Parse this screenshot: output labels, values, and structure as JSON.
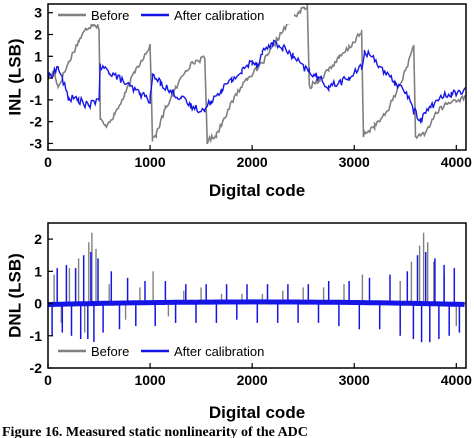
{
  "caption": "Figure 16. Measured static nonlinearity of the ADC",
  "chart_data": [
    {
      "type": "line",
      "title": "",
      "xlabel": "Digital code",
      "ylabel": "INL (LSB)",
      "xlim": [
        0,
        4095
      ],
      "ylim": [
        -3.3,
        3.4
      ],
      "xticks": [
        0,
        1000,
        2000,
        3000,
        4000
      ],
      "yticks": [
        -3,
        -2,
        -1,
        0,
        1,
        2,
        3
      ],
      "grid": false,
      "legend_position": "top-left",
      "series": [
        {
          "name": "Before",
          "color": "#808080",
          "x": [
            0,
            60,
            100,
            200,
            300,
            380,
            450,
            500,
            512,
            560,
            650,
            750,
            850,
            950,
            1000,
            1024,
            1060,
            1150,
            1250,
            1350,
            1450,
            1536,
            1560,
            1650,
            1750,
            1850,
            1950,
            2048,
            2150,
            2250,
            2350,
            2450,
            2540,
            2560,
            2650,
            2750,
            2850,
            2950,
            3072,
            3090,
            3200,
            3300,
            3400,
            3500,
            3584,
            3600,
            3700,
            3800,
            3900,
            4000,
            4095
          ],
          "values": [
            0.0,
            0.3,
            -0.4,
            0.7,
            1.7,
            2.3,
            2.5,
            2.3,
            -1.9,
            -2.2,
            -1.7,
            -0.8,
            0.3,
            1.1,
            1.5,
            -2.8,
            -2.6,
            -1.4,
            -0.5,
            0.4,
            0.8,
            0.9,
            -2.9,
            -2.6,
            -1.6,
            -0.7,
            0.0,
            0.4,
            1.0,
            1.8,
            2.5,
            3.0,
            3.3,
            -0.4,
            -0.1,
            0.4,
            0.9,
            1.4,
            2.1,
            -2.6,
            -2.2,
            -1.7,
            -0.8,
            0.3,
            1.5,
            -2.8,
            -2.5,
            -1.6,
            -1.2,
            -1.0,
            -0.9
          ]
        },
        {
          "name": "After calibration",
          "color": "#1515e6",
          "x": [
            0,
            100,
            200,
            300,
            400,
            500,
            512,
            600,
            700,
            800,
            900,
            1000,
            1024,
            1100,
            1200,
            1300,
            1400,
            1536,
            1600,
            1700,
            1800,
            1900,
            2000,
            2048,
            2100,
            2200,
            2300,
            2400,
            2500,
            2560,
            2650,
            2750,
            2850,
            2950,
            3072,
            3100,
            3200,
            3300,
            3400,
            3500,
            3584,
            3650,
            3750,
            3850,
            3950,
            4095
          ],
          "values": [
            0.0,
            0.5,
            -0.9,
            -1.0,
            -1.3,
            -0.9,
            0.5,
            0.3,
            0.0,
            -0.4,
            -0.7,
            -1.0,
            0.1,
            -0.2,
            -0.6,
            -0.9,
            -1.3,
            -1.5,
            -1.0,
            -0.5,
            -0.1,
            0.3,
            0.8,
            0.6,
            1.2,
            1.6,
            1.4,
            1.0,
            0.5,
            0.3,
            0.0,
            -0.4,
            -0.2,
            0.0,
            0.5,
            1.2,
            0.9,
            0.2,
            -0.2,
            -0.6,
            -1.5,
            -1.9,
            -1.3,
            -0.9,
            -0.7,
            -0.6
          ]
        }
      ]
    },
    {
      "type": "line",
      "title": "",
      "xlabel": "Digital code",
      "ylabel": "DNL (LSB)",
      "xlim": [
        0,
        4095
      ],
      "ylim": [
        -2,
        2.5
      ],
      "xticks": [
        0,
        1000,
        2000,
        3000,
        4000
      ],
      "yticks": [
        -2,
        -1,
        0,
        1,
        2
      ],
      "grid": false,
      "legend_position": "bottom-left",
      "series": [
        {
          "name": "Before",
          "color": "#808080",
          "spike_x": [
            60,
            130,
            210,
            300,
            360,
            400,
            430,
            470,
            600,
            760,
            900,
            1030,
            1180,
            1330,
            1500,
            1700,
            1900,
            2100,
            2300,
            2500,
            2700,
            2900,
            3080,
            3250,
            3450,
            3560,
            3640,
            3680,
            3720,
            3780,
            3880,
            4000
          ],
          "spike_values": [
            0.9,
            -0.6,
            1.1,
            1.4,
            -0.9,
            1.9,
            2.2,
            1.7,
            0.6,
            -0.5,
            0.5,
            1.0,
            -0.4,
            0.4,
            0.5,
            0.3,
            0.3,
            0.3,
            0.4,
            0.5,
            0.5,
            0.6,
            0.9,
            -0.5,
            0.7,
            1.3,
            1.8,
            2.2,
            1.9,
            1.3,
            0.9,
            -0.7
          ]
        },
        {
          "name": "After calibration",
          "color": "#1515e6",
          "spike_x": [
            40,
            90,
            140,
            180,
            230,
            270,
            320,
            350,
            390,
            420,
            450,
            490,
            540,
            620,
            700,
            780,
            860,
            950,
            1050,
            1150,
            1250,
            1350,
            1450,
            1550,
            1650,
            1750,
            1850,
            1950,
            2050,
            2150,
            2250,
            2350,
            2450,
            2550,
            2650,
            2750,
            2850,
            2950,
            3050,
            3150,
            3250,
            3350,
            3450,
            3520,
            3580,
            3620,
            3660,
            3700,
            3740,
            3790,
            3830,
            3880,
            3930,
            3980,
            4030
          ],
          "spike_values": [
            -1.0,
            1.1,
            -0.9,
            1.2,
            -1.0,
            1.1,
            -1.1,
            1.5,
            -1.1,
            1.6,
            -1.2,
            1.4,
            -0.9,
            1.0,
            -0.8,
            0.8,
            -0.7,
            0.7,
            -0.7,
            0.7,
            -0.6,
            0.6,
            -0.6,
            0.6,
            -0.6,
            0.6,
            -0.5,
            0.6,
            -0.6,
            0.6,
            -0.6,
            0.6,
            -0.6,
            0.6,
            -0.6,
            0.7,
            -0.7,
            0.7,
            -0.8,
            0.8,
            -0.8,
            0.9,
            -1.0,
            1.0,
            -1.1,
            1.5,
            -1.2,
            1.6,
            -1.2,
            1.4,
            -1.1,
            1.2,
            -1.0,
            1.1,
            -0.9
          ]
        }
      ]
    }
  ]
}
